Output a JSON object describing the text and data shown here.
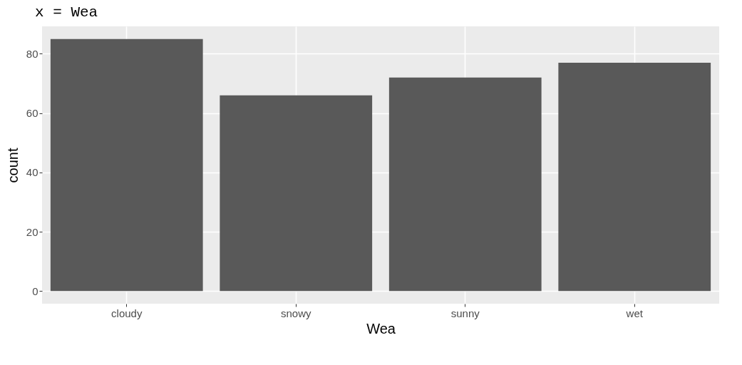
{
  "chart_data": {
    "type": "bar",
    "title": "x = Wea",
    "xlabel": "Wea",
    "ylabel": "count",
    "categories": [
      "cloudy",
      "snowy",
      "sunny",
      "wet"
    ],
    "values": [
      85,
      66,
      72,
      77
    ],
    "color": "#595959",
    "ylim": [
      -4.25,
      89.25
    ],
    "yticks": [
      0,
      20,
      40,
      60,
      80
    ],
    "grid": true
  }
}
